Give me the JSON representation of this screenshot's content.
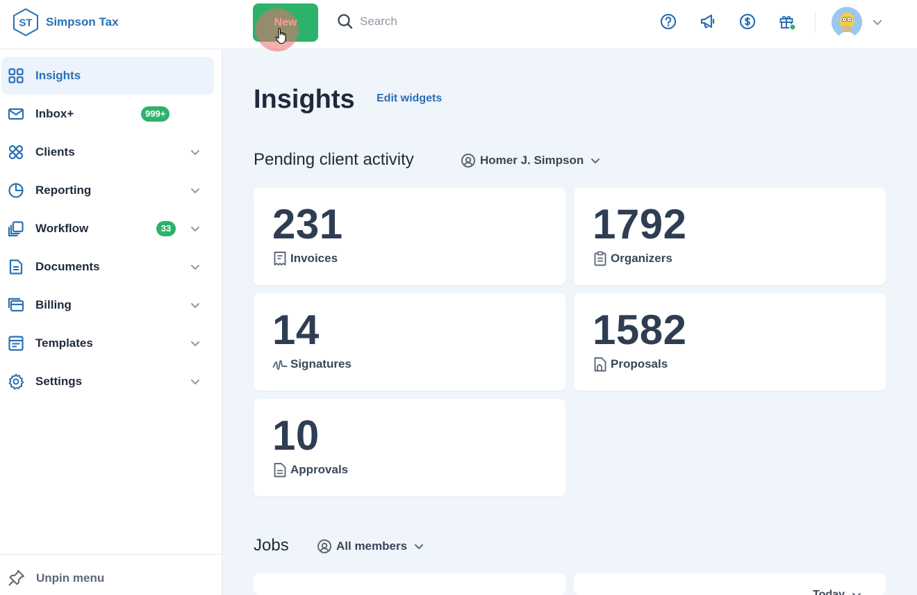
{
  "brand": {
    "initials": "ST",
    "name": "Simpson Tax"
  },
  "header": {
    "new_label": "New",
    "search_placeholder": "Search",
    "icons": [
      "help-icon",
      "announcement-icon",
      "dollar-icon",
      "gift-icon"
    ],
    "notification_dot_color": "#2db26b"
  },
  "sidebar": {
    "items": [
      {
        "label": "Insights",
        "icon": "dashboard-grid-icon",
        "active": true
      },
      {
        "label": "Inbox+",
        "icon": "mail-icon",
        "badge": "999+"
      },
      {
        "label": "Clients",
        "icon": "clients-icon",
        "expandable": true
      },
      {
        "label": "Reporting",
        "icon": "pie-chart-icon",
        "expandable": true
      },
      {
        "label": "Workflow",
        "icon": "workflow-icon",
        "badge": "33",
        "expandable": true
      },
      {
        "label": "Documents",
        "icon": "document-icon",
        "expandable": true
      },
      {
        "label": "Billing",
        "icon": "billing-icon",
        "expandable": true
      },
      {
        "label": "Templates",
        "icon": "templates-icon",
        "expandable": true
      },
      {
        "label": "Settings",
        "icon": "gear-icon",
        "expandable": true
      }
    ],
    "footer_label": "Unpin menu"
  },
  "main": {
    "title": "Insights",
    "edit_widgets": "Edit widgets",
    "pending": {
      "title": "Pending client activity",
      "filter": "Homer J. Simpson",
      "cards": [
        {
          "value": "231",
          "label": "Invoices",
          "icon": "receipt-icon"
        },
        {
          "value": "1792",
          "label": "Organizers",
          "icon": "clipboard-icon"
        },
        {
          "value": "14",
          "label": "Signatures",
          "icon": "signature-icon"
        },
        {
          "value": "1582",
          "label": "Proposals",
          "icon": "proposal-icon"
        },
        {
          "value": "10",
          "label": "Approvals",
          "icon": "approval-doc-icon"
        }
      ]
    },
    "jobs": {
      "title": "Jobs",
      "filter": "All members",
      "today_filter": "Today"
    }
  },
  "colors": {
    "accent": "#2a6fb5",
    "success": "#2db26b",
    "background": "#f0f4fb"
  }
}
